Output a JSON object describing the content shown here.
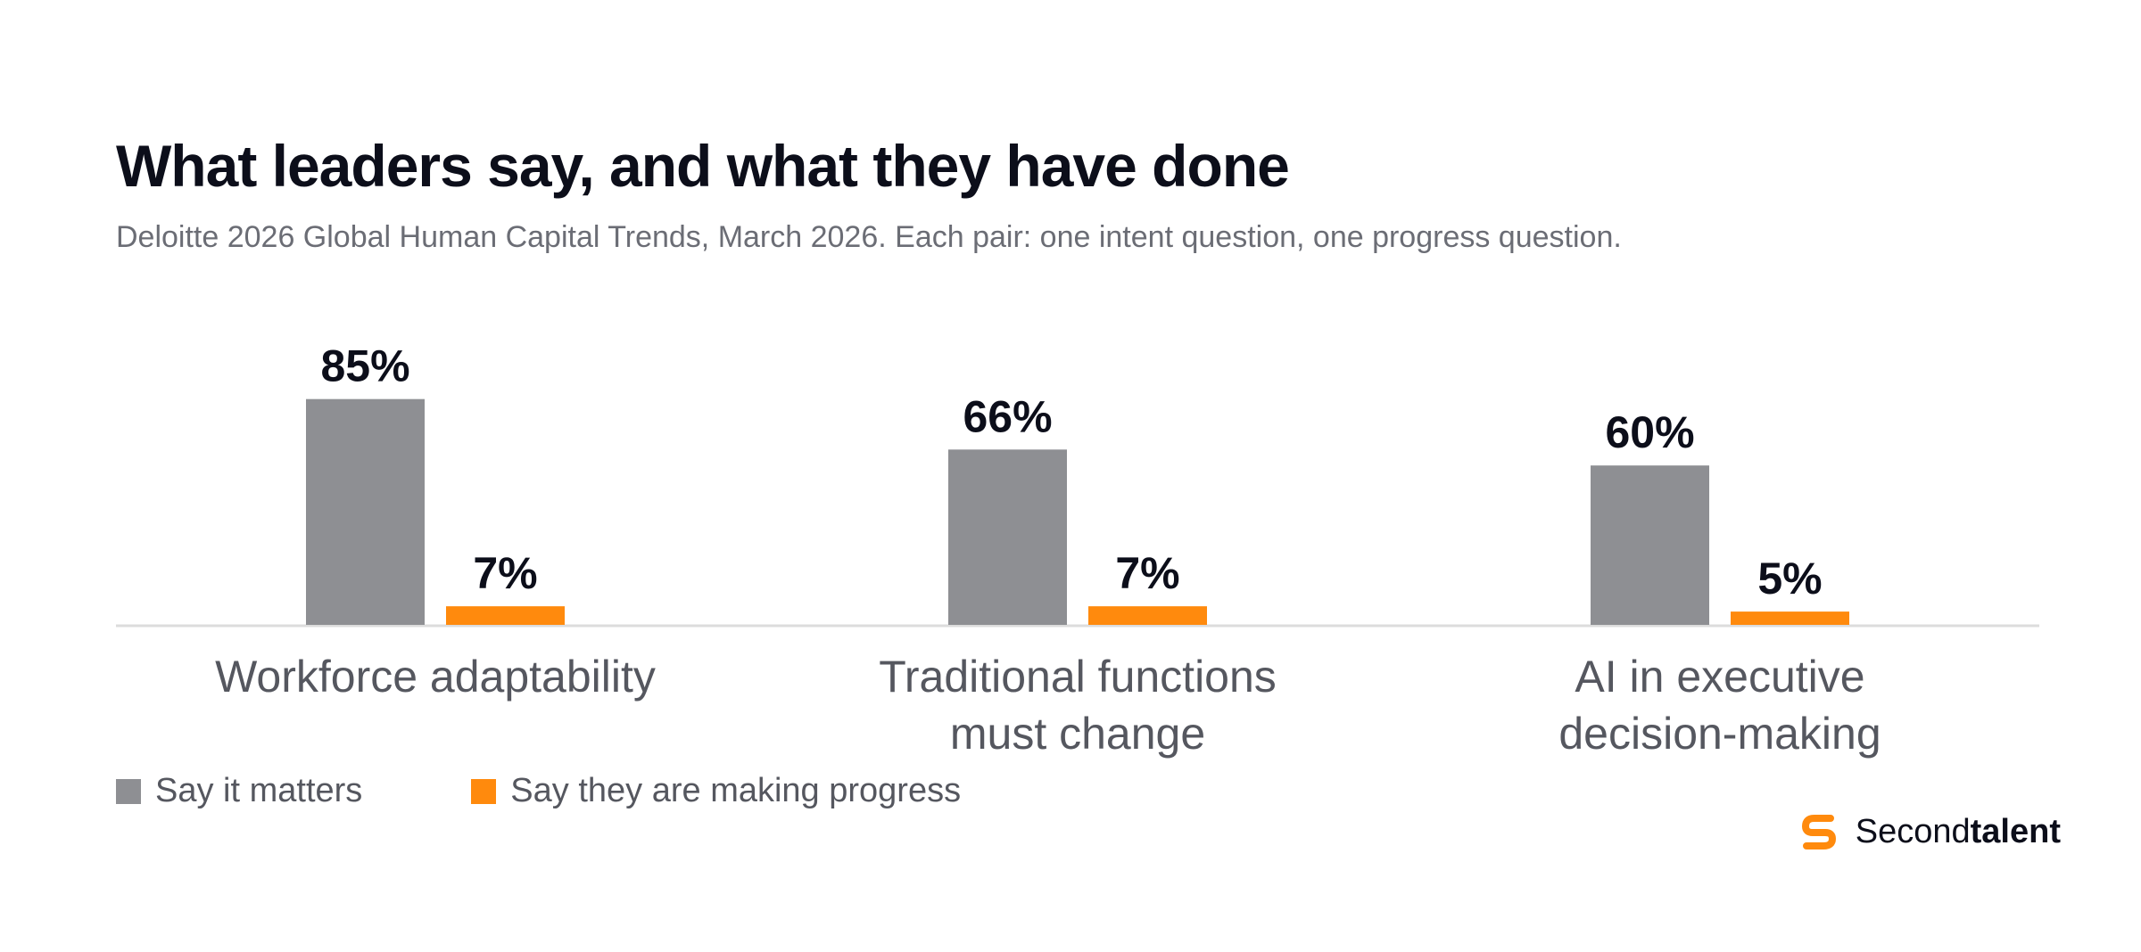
{
  "header": {
    "title": "What leaders say, and what they have done",
    "subtitle": "Deloitte 2026 Global Human Capital Trends, March 2026. Each pair: one intent question, one progress question."
  },
  "colors": {
    "say_it_matters": "#8e8f93",
    "making_progress": "#ff8a0d",
    "baseline": "#dcdcdc",
    "label_text": "#55575f",
    "value_text": "#0c0e1a"
  },
  "legend": [
    {
      "label": "Say it matters",
      "color": "#8e8f93"
    },
    {
      "label": "Say they are making progress",
      "color": "#ff8a0d"
    }
  ],
  "brand": {
    "regular": "Second",
    "bold": "talent",
    "icon": "secondtalent-logo-icon"
  },
  "chart_data": {
    "type": "bar",
    "categories": [
      [
        "Workforce adaptability"
      ],
      [
        "Traditional functions",
        "must change"
      ],
      [
        "AI in executive",
        "decision-making"
      ]
    ],
    "series": [
      {
        "name": "Say it matters",
        "values": [
          85,
          66,
          60
        ],
        "labels": [
          "85%",
          "66%",
          "60%"
        ]
      },
      {
        "name": "Say they are making progress",
        "values": [
          7,
          7,
          5
        ],
        "labels": [
          "7%",
          "7%",
          "5%"
        ]
      }
    ],
    "ylim": [
      0,
      100
    ],
    "grid": false,
    "legend_position": "bottom-left"
  }
}
